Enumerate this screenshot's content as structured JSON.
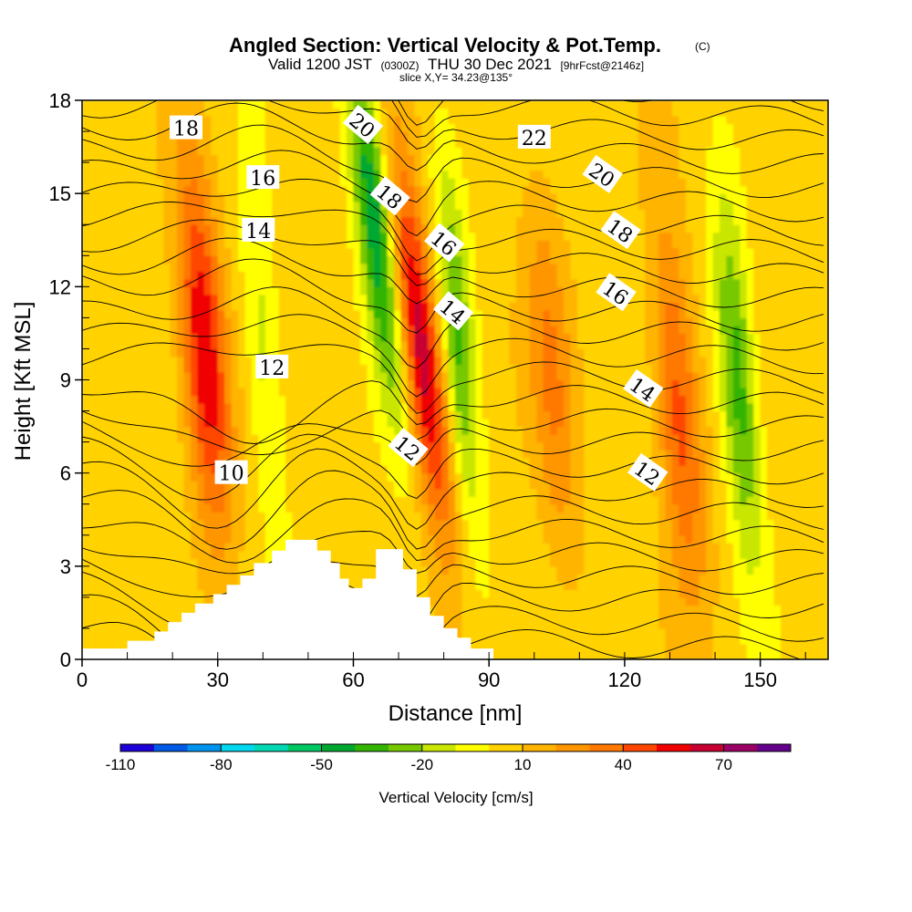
{
  "title": "Angled Section: Vertical Velocity & Pot.Temp.",
  "title_tag": "(C)",
  "valid_prefix": "Valid 1200 JST",
  "valid_zulu": "(0300Z)",
  "valid_date": "THU 30 Dec 2021",
  "valid_fcst": "[9hrFcst@2146z]",
  "slice": "slice X,Y= 34.23@135°",
  "colors": {
    "scale": [
      "#1e00d8",
      "#005ae6",
      "#0094f0",
      "#00d8f0",
      "#00d8b4",
      "#00c864",
      "#00a832",
      "#32b400",
      "#78c800",
      "#c8e600",
      "#ffff00",
      "#ffd200",
      "#ffb400",
      "#ff9600",
      "#ff7800",
      "#ff4600",
      "#f00000",
      "#c80032",
      "#9b0064",
      "#64008c"
    ],
    "terrain": "#ffffff",
    "contour": "#000000"
  },
  "chart_data": {
    "type": "heatmap",
    "xlabel": "Distance [nm]",
    "ylabel": "Height [Kft MSL]",
    "xlim": [
      0,
      165
    ],
    "ylim": [
      0,
      18
    ],
    "xticks": [
      "0",
      "30",
      "60",
      "90",
      "120",
      "150"
    ],
    "yticks": [
      "0",
      "3",
      "6",
      "9",
      "12",
      "15",
      "18"
    ],
    "colorbar": {
      "label": "Vertical Velocity [cm/s]",
      "min": -110,
      "max": 90,
      "step": 10,
      "labels": [
        "-110",
        "-80",
        "-50",
        "-20",
        "10",
        "40",
        "70"
      ]
    },
    "updrafts": [
      {
        "x": 27,
        "y": 10,
        "peak": 55
      },
      {
        "x": 75,
        "y": 10,
        "peak": 65
      },
      {
        "x": 132,
        "y": 8,
        "peak": 40
      },
      {
        "x": 104,
        "y": 9,
        "peak": 25
      }
    ],
    "downdrafts": [
      {
        "x": 65,
        "y": 14,
        "peak": -60
      },
      {
        "x": 83,
        "y": 10,
        "peak": -40
      },
      {
        "x": 145,
        "y": 9,
        "peak": -40
      },
      {
        "x": 40,
        "y": 10,
        "peak": -20
      }
    ],
    "theta_contours": [
      {
        "label": "10",
        "x": 33,
        "y": 6.0
      },
      {
        "label": "12",
        "x": 42,
        "y": 9.4
      },
      {
        "label": "12",
        "x": 72,
        "y": 6.8
      },
      {
        "label": "12",
        "x": 125,
        "y": 6.0
      },
      {
        "label": "14",
        "x": 39,
        "y": 13.8
      },
      {
        "label": "14",
        "x": 82,
        "y": 11.2
      },
      {
        "label": "14",
        "x": 124,
        "y": 8.7
      },
      {
        "label": "16",
        "x": 40,
        "y": 15.5
      },
      {
        "label": "16",
        "x": 80,
        "y": 13.4
      },
      {
        "label": "16",
        "x": 118,
        "y": 11.8
      },
      {
        "label": "18",
        "x": 23,
        "y": 17.1
      },
      {
        "label": "18",
        "x": 68,
        "y": 14.9
      },
      {
        "label": "18",
        "x": 119,
        "y": 13.8
      },
      {
        "label": "20",
        "x": 62,
        "y": 17.2
      },
      {
        "label": "20",
        "x": 115,
        "y": 15.6
      },
      {
        "label": "22",
        "x": 100,
        "y": 16.8
      }
    ],
    "terrain": [
      [
        0,
        0.35
      ],
      [
        10,
        0.35
      ],
      [
        10,
        0.6
      ],
      [
        16,
        0.6
      ],
      [
        16,
        0.9
      ],
      [
        19,
        0.9
      ],
      [
        19,
        1.2
      ],
      [
        22,
        1.2
      ],
      [
        22,
        1.5
      ],
      [
        25,
        1.5
      ],
      [
        25,
        1.8
      ],
      [
        29,
        1.8
      ],
      [
        29,
        2.1
      ],
      [
        32,
        2.1
      ],
      [
        32,
        2.4
      ],
      [
        35,
        2.4
      ],
      [
        35,
        2.7
      ],
      [
        38,
        2.7
      ],
      [
        38,
        3.1
      ],
      [
        42,
        3.1
      ],
      [
        42,
        3.5
      ],
      [
        45,
        3.5
      ],
      [
        45,
        3.85
      ],
      [
        52,
        3.85
      ],
      [
        52,
        3.5
      ],
      [
        55,
        3.5
      ],
      [
        55,
        3.1
      ],
      [
        57,
        3.1
      ],
      [
        57,
        2.6
      ],
      [
        59,
        2.6
      ],
      [
        59,
        2.3
      ],
      [
        62,
        2.3
      ],
      [
        62,
        2.6
      ],
      [
        65,
        2.6
      ],
      [
        65,
        3.55
      ],
      [
        71,
        3.55
      ],
      [
        71,
        2.9
      ],
      [
        74,
        2.9
      ],
      [
        74,
        2.0
      ],
      [
        77,
        2.0
      ],
      [
        77,
        1.4
      ],
      [
        80,
        1.4
      ],
      [
        80,
        1.0
      ],
      [
        83,
        1.0
      ],
      [
        83,
        0.7
      ],
      [
        86,
        0.7
      ],
      [
        86,
        0.35
      ],
      [
        91,
        0.35
      ],
      [
        91,
        0
      ]
    ]
  }
}
